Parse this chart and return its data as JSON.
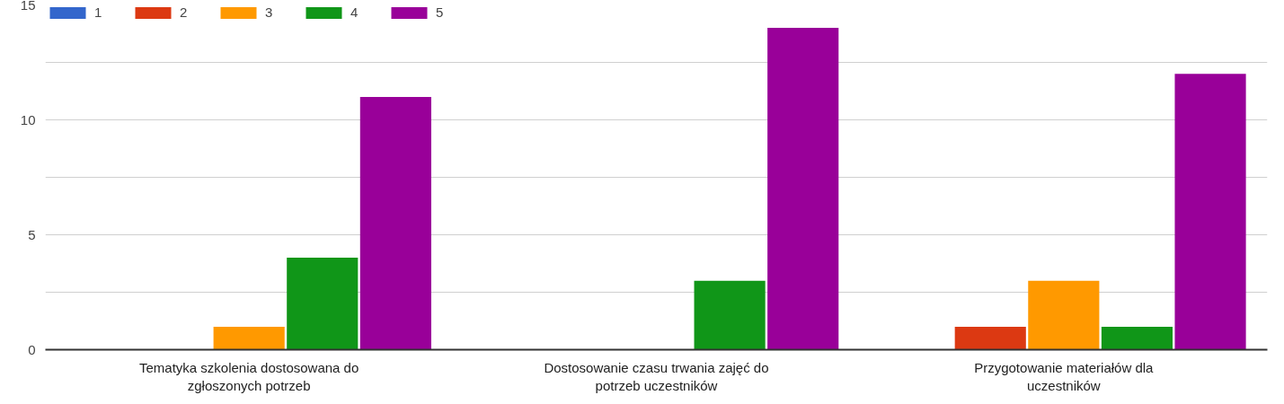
{
  "chart_data": {
    "type": "bar",
    "categories": [
      "Tematyka szkolenia dostosowana do zgłoszonych potrzeb",
      "Dostosowanie czasu trwania zajęć do potrzeb uczestników",
      "Przygotowanie materiałów dla uczestników"
    ],
    "series": [
      {
        "name": "1",
        "color": "#3366cc",
        "values": [
          0,
          0,
          0
        ]
      },
      {
        "name": "2",
        "color": "#dc3912",
        "values": [
          0,
          0,
          1
        ]
      },
      {
        "name": "3",
        "color": "#ff9900",
        "values": [
          1,
          0,
          3
        ]
      },
      {
        "name": "4",
        "color": "#109618",
        "values": [
          4,
          3,
          1
        ]
      },
      {
        "name": "5",
        "color": "#990099",
        "values": [
          11,
          14,
          12
        ]
      }
    ],
    "ylim": [
      0,
      15
    ],
    "yticks": [
      0,
      {
        "value": 2.5,
        "label": null
      },
      5,
      {
        "value": 7.5,
        "label": null
      },
      10,
      {
        "value": 12.5,
        "label": null
      },
      15
    ],
    "grid": "y",
    "legend": "top left"
  }
}
